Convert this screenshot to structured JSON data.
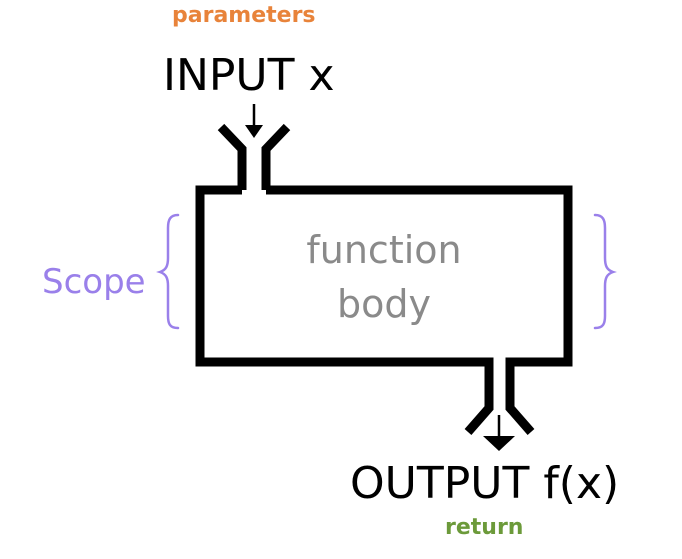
{
  "labels": {
    "parameters": "parameters",
    "input": "INPUT x",
    "scope": "Scope",
    "body_line1": "function",
    "body_line2": "body",
    "output": "OUTPUT f(x)",
    "return": "return"
  },
  "colors": {
    "parameters": "#e8833a",
    "scope": "#9a80ea",
    "body_text": "#8a8a8a",
    "return": "#6c9a3a",
    "outline": "#000000"
  }
}
